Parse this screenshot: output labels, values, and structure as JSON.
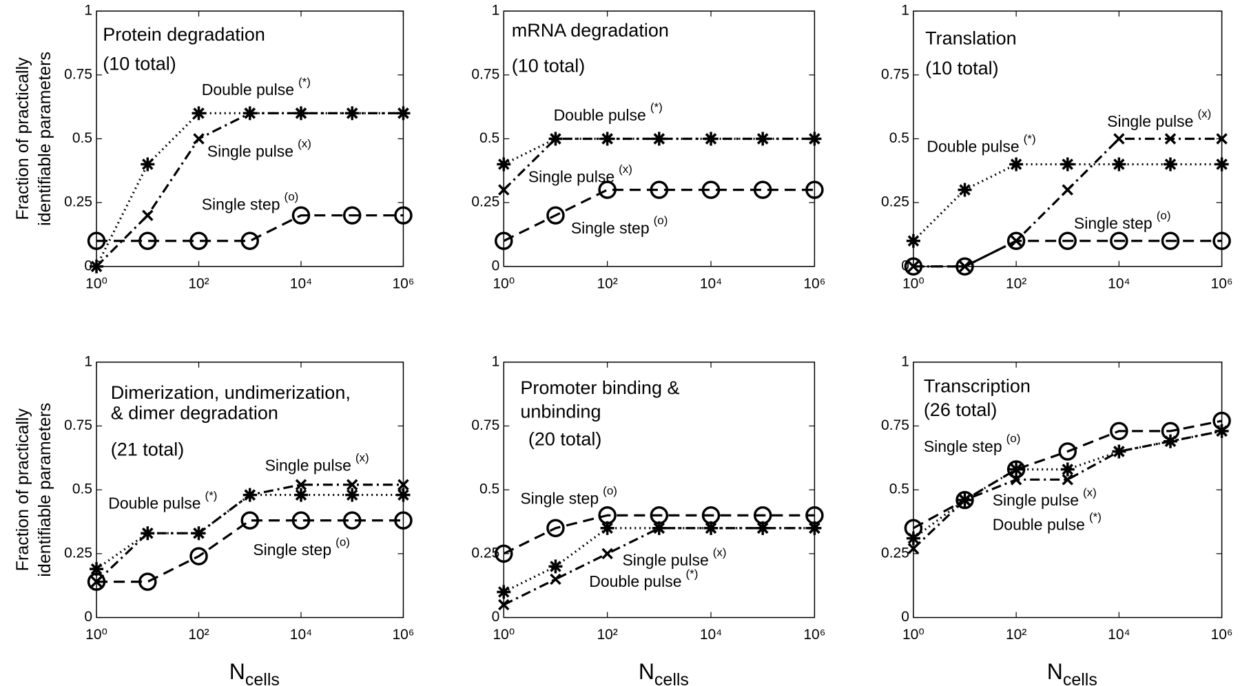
{
  "chart_data": [
    {
      "type": "line",
      "label_lines": [
        "Protein degradation",
        "(10 total)"
      ],
      "ylabel_lines": [
        "Fraction of practically",
        "identifiable parameters"
      ],
      "x": [
        1,
        10,
        100,
        1000,
        10000,
        100000,
        1000000
      ],
      "xscale": "log",
      "xlim": [
        1,
        1000000
      ],
      "xticks": [
        {
          "value": 1,
          "label": "10⁰"
        },
        {
          "value": 100,
          "label": "10²"
        },
        {
          "value": 10000,
          "label": "10⁴"
        },
        {
          "value": 1000000,
          "label": "10⁶"
        }
      ],
      "ylim": [
        0,
        1
      ],
      "yticks": [
        0,
        0.25,
        0.5,
        0.75,
        1
      ],
      "series": [
        {
          "name": "Double pulse",
          "symbol": "(*)",
          "color": "#000000",
          "marker": "star",
          "dash": "dotted",
          "values": [
            0,
            0.4,
            0.6,
            0.6,
            0.6,
            0.6,
            0.6
          ]
        },
        {
          "name": "Single pulse",
          "symbol": "(x)",
          "color": "#000000",
          "marker": "x",
          "dash": "dashdot",
          "values": [
            0,
            0.2,
            0.5,
            0.6,
            0.6,
            0.6,
            0.6
          ]
        },
        {
          "name": "Single step",
          "symbol": "(o)",
          "color": "#000000",
          "marker": "circle",
          "dash": "dashed",
          "values": [
            0.1,
            0.1,
            0.1,
            0.1,
            0.2,
            0.2,
            0.2
          ]
        }
      ]
    },
    {
      "type": "line",
      "label_lines": [
        "mRNA degradation",
        "(10 total)"
      ],
      "x": [
        1,
        10,
        100,
        1000,
        10000,
        100000,
        1000000
      ],
      "xscale": "log",
      "xlim": [
        1,
        1000000
      ],
      "xticks": [
        {
          "value": 1,
          "label": "10⁰"
        },
        {
          "value": 100,
          "label": "10²"
        },
        {
          "value": 10000,
          "label": "10⁴"
        },
        {
          "value": 1000000,
          "label": "10⁶"
        }
      ],
      "ylim": [
        0,
        1
      ],
      "yticks": [
        0,
        0.25,
        0.5,
        0.75,
        1
      ],
      "series": [
        {
          "name": "Double pulse",
          "symbol": "(*)",
          "color": "#000000",
          "marker": "star",
          "dash": "dotted",
          "values": [
            0.4,
            0.5,
            0.5,
            0.5,
            0.5,
            0.5,
            0.5
          ]
        },
        {
          "name": "Single pulse",
          "symbol": "(x)",
          "color": "#000000",
          "marker": "x",
          "dash": "dashdot",
          "values": [
            0.3,
            0.5,
            0.5,
            0.5,
            0.5,
            0.5,
            0.5
          ]
        },
        {
          "name": "Single step",
          "symbol": "(o)",
          "color": "#000000",
          "marker": "circle",
          "dash": "dashed",
          "values": [
            0.1,
            0.2,
            0.3,
            0.3,
            0.3,
            0.3,
            0.3
          ]
        }
      ]
    },
    {
      "type": "line",
      "label_lines": [
        "Translation",
        "(10 total)"
      ],
      "x": [
        1,
        10,
        100,
        1000,
        10000,
        100000,
        1000000
      ],
      "xscale": "log",
      "xlim": [
        1,
        1000000
      ],
      "xticks": [
        {
          "value": 1,
          "label": "10⁰"
        },
        {
          "value": 100,
          "label": "10²"
        },
        {
          "value": 10000,
          "label": "10⁴"
        },
        {
          "value": 1000000,
          "label": "10⁶"
        }
      ],
      "ylim": [
        0,
        1
      ],
      "yticks": [
        0,
        0.25,
        0.5,
        0.75,
        1
      ],
      "series": [
        {
          "name": "Double pulse",
          "symbol": "(*)",
          "color": "#000000",
          "marker": "star",
          "dash": "dotted",
          "values": [
            0.1,
            0.3,
            0.4,
            0.4,
            0.4,
            0.4,
            0.4
          ]
        },
        {
          "name": "Single pulse",
          "symbol": "(x)",
          "color": "#000000",
          "marker": "x",
          "dash": "dashdot",
          "values": [
            0,
            0,
            0.1,
            0.3,
            0.5,
            0.5,
            0.5
          ]
        },
        {
          "name": "Single step",
          "symbol": "(o)",
          "color": "#000000",
          "marker": "circle",
          "dash": "dashed",
          "values": [
            0,
            0,
            0.1,
            0.1,
            0.1,
            0.1,
            0.1
          ]
        }
      ]
    },
    {
      "type": "line",
      "label_lines": [
        "Dimerization, undimerization,",
        "& dimer degradation",
        "(21 total)"
      ],
      "ylabel_lines": [
        "Fraction of practically",
        "identifiable parameters"
      ],
      "xlabel": {
        "main": "N",
        "sub": "cells"
      },
      "x": [
        1,
        10,
        100,
        1000,
        10000,
        100000,
        1000000
      ],
      "xscale": "log",
      "xlim": [
        1,
        1000000
      ],
      "xticks": [
        {
          "value": 1,
          "label": "10⁰"
        },
        {
          "value": 100,
          "label": "10²"
        },
        {
          "value": 10000,
          "label": "10⁴"
        },
        {
          "value": 1000000,
          "label": "10⁶"
        }
      ],
      "ylim": [
        0,
        1
      ],
      "yticks": [
        0,
        0.25,
        0.5,
        0.75,
        1
      ],
      "series": [
        {
          "name": "Double pulse",
          "symbol": "(*)",
          "color": "#000000",
          "marker": "star",
          "dash": "dotted",
          "values": [
            0.19,
            0.33,
            0.33,
            0.48,
            0.48,
            0.48,
            0.48
          ]
        },
        {
          "name": "Single pulse",
          "symbol": "(x)",
          "color": "#000000",
          "marker": "x",
          "dash": "dashdot",
          "values": [
            0.14,
            0.33,
            0.33,
            0.48,
            0.52,
            0.52,
            0.52
          ]
        },
        {
          "name": "Single step",
          "symbol": "(o)",
          "color": "#000000",
          "marker": "circle",
          "dash": "dashed",
          "values": [
            0.14,
            0.14,
            0.24,
            0.38,
            0.38,
            0.38,
            0.38
          ]
        }
      ]
    },
    {
      "type": "line",
      "label_lines": [
        "Promoter binding &",
        "unbinding",
        "(20 total)"
      ],
      "xlabel": {
        "main": "N",
        "sub": "cells"
      },
      "x": [
        1,
        10,
        100,
        1000,
        10000,
        100000,
        1000000
      ],
      "xscale": "log",
      "xlim": [
        1,
        1000000
      ],
      "xticks": [
        {
          "value": 1,
          "label": "10⁰"
        },
        {
          "value": 100,
          "label": "10²"
        },
        {
          "value": 10000,
          "label": "10⁴"
        },
        {
          "value": 1000000,
          "label": "10⁶"
        }
      ],
      "ylim": [
        0,
        1
      ],
      "yticks": [
        0,
        0.25,
        0.5,
        0.75,
        1
      ],
      "series": [
        {
          "name": "Double pulse",
          "symbol": "(*)",
          "color": "#000000",
          "marker": "star",
          "dash": "dotted",
          "values": [
            0.1,
            0.2,
            0.35,
            0.35,
            0.35,
            0.35,
            0.35
          ]
        },
        {
          "name": "Single pulse",
          "symbol": "(x)",
          "color": "#000000",
          "marker": "x",
          "dash": "dashdot",
          "values": [
            0.05,
            0.15,
            0.25,
            0.35,
            0.35,
            0.35,
            0.35
          ]
        },
        {
          "name": "Single step",
          "symbol": "(o)",
          "color": "#000000",
          "marker": "circle",
          "dash": "dashed",
          "values": [
            0.25,
            0.35,
            0.4,
            0.4,
            0.4,
            0.4,
            0.4
          ]
        }
      ]
    },
    {
      "type": "line",
      "label_lines": [
        "Transcription",
        "(26 total)"
      ],
      "xlabel": {
        "main": "N",
        "sub": "cells"
      },
      "x": [
        1,
        10,
        100,
        1000,
        10000,
        100000,
        1000000
      ],
      "xscale": "log",
      "xlim": [
        1,
        1000000
      ],
      "xticks": [
        {
          "value": 1,
          "label": "10⁰"
        },
        {
          "value": 100,
          "label": "10²"
        },
        {
          "value": 10000,
          "label": "10⁴"
        },
        {
          "value": 1000000,
          "label": "10⁶"
        }
      ],
      "ylim": [
        0,
        1
      ],
      "yticks": [
        0,
        0.25,
        0.5,
        0.75,
        1
      ],
      "series": [
        {
          "name": "Double pulse",
          "symbol": "(*)",
          "color": "#000000",
          "marker": "star",
          "dash": "dotted",
          "values": [
            0.31,
            0.46,
            0.58,
            0.58,
            0.65,
            0.69,
            0.73
          ]
        },
        {
          "name": "Single pulse",
          "symbol": "(x)",
          "color": "#000000",
          "marker": "x",
          "dash": "dashdot",
          "values": [
            0.27,
            0.46,
            0.54,
            0.54,
            0.65,
            0.69,
            0.73
          ]
        },
        {
          "name": "Single step",
          "symbol": "(o)",
          "color": "#000000",
          "marker": "circle",
          "dash": "dashed",
          "values": [
            0.35,
            0.46,
            0.58,
            0.65,
            0.73,
            0.73,
            0.77
          ]
        }
      ]
    }
  ]
}
